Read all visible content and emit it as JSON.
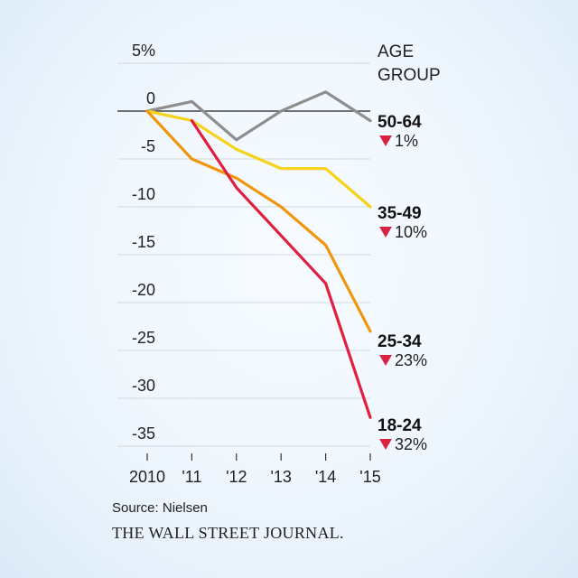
{
  "chart_data": {
    "type": "line",
    "x": [
      "2010",
      "'11",
      "'12",
      "'13",
      "'14",
      "'15"
    ],
    "yticks": [
      "5%",
      "0",
      "-5",
      "-10",
      "-15",
      "-20",
      "-25",
      "-30",
      "-35"
    ],
    "ylim": [
      -35,
      5
    ],
    "grid": true,
    "legend_title_lines": [
      "AGE",
      "GROUP"
    ],
    "series": [
      {
        "name": "50-64",
        "change": "1%",
        "color": "#8e8e8e",
        "values": [
          0,
          1,
          -3,
          0,
          2,
          -1
        ]
      },
      {
        "name": "35-49",
        "change": "10%",
        "color": "#f5d21c",
        "values": [
          0,
          -1,
          -4,
          -6,
          -6,
          -10
        ]
      },
      {
        "name": "25-34",
        "change": "23%",
        "color": "#f0960d",
        "values": [
          0,
          -5,
          -7,
          -10,
          -14,
          -23
        ]
      },
      {
        "name": "18-24",
        "change": "32%",
        "color": "#e01f3d",
        "values": [
          null,
          -1,
          -8,
          -13,
          -18,
          -32
        ]
      }
    ],
    "change_marker_color": "#d82240"
  },
  "footer": {
    "source": "Source: Nielsen",
    "brand": "THE WALL STREET JOURNAL."
  }
}
